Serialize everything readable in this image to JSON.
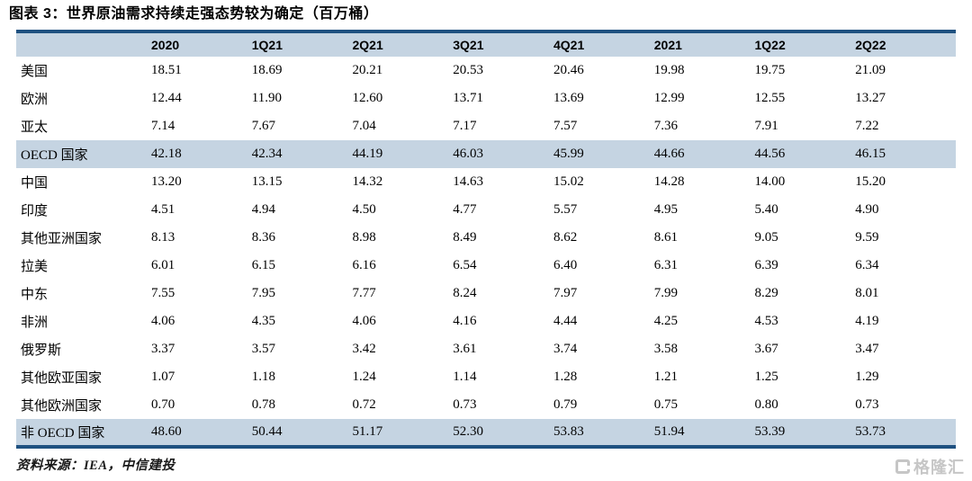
{
  "title": "图表 3：世界原油需求持续走强态势较为确定（百万桶）",
  "source_note": "资料来源：IEA，中信建投",
  "watermark": {
    "icon": "gelonghui-logo-icon",
    "label": "格隆汇"
  },
  "colors": {
    "accent_navy": "#1f5180",
    "band_blue": "#c5d4e2",
    "watermark_gray": "#c6c6c6"
  },
  "chart_data": {
    "type": "table",
    "title": "世界原油需求持续走强态势较为确定（百万桶）",
    "columns": [
      "",
      "2020",
      "1Q21",
      "2Q21",
      "3Q21",
      "4Q21",
      "2021",
      "1Q22",
      "2Q22"
    ],
    "rows": [
      {
        "label": "美国",
        "highlight": false,
        "values": [
          "18.51",
          "18.69",
          "20.21",
          "20.53",
          "20.46",
          "19.98",
          "19.75",
          "21.09"
        ]
      },
      {
        "label": "欧洲",
        "highlight": false,
        "values": [
          "12.44",
          "11.90",
          "12.60",
          "13.71",
          "13.69",
          "12.99",
          "12.55",
          "13.27"
        ]
      },
      {
        "label": "亚太",
        "highlight": false,
        "values": [
          "7.14",
          "7.67",
          "7.04",
          "7.17",
          "7.57",
          "7.36",
          "7.91",
          "7.22"
        ]
      },
      {
        "label": "OECD 国家",
        "highlight": true,
        "values": [
          "42.18",
          "42.34",
          "44.19",
          "46.03",
          "45.99",
          "44.66",
          "44.56",
          "46.15"
        ]
      },
      {
        "label": "中国",
        "highlight": false,
        "values": [
          "13.20",
          "13.15",
          "14.32",
          "14.63",
          "15.02",
          "14.28",
          "14.00",
          "15.20"
        ]
      },
      {
        "label": "印度",
        "highlight": false,
        "values": [
          "4.51",
          "4.94",
          "4.50",
          "4.77",
          "5.57",
          "4.95",
          "5.40",
          "4.90"
        ]
      },
      {
        "label": "其他亚洲国家",
        "highlight": false,
        "values": [
          "8.13",
          "8.36",
          "8.98",
          "8.49",
          "8.62",
          "8.61",
          "9.05",
          "9.59"
        ]
      },
      {
        "label": "拉美",
        "highlight": false,
        "values": [
          "6.01",
          "6.15",
          "6.16",
          "6.54",
          "6.40",
          "6.31",
          "6.39",
          "6.34"
        ]
      },
      {
        "label": "中东",
        "highlight": false,
        "values": [
          "7.55",
          "7.95",
          "7.77",
          "8.24",
          "7.97",
          "7.99",
          "8.29",
          "8.01"
        ]
      },
      {
        "label": "非洲",
        "highlight": false,
        "values": [
          "4.06",
          "4.35",
          "4.06",
          "4.16",
          "4.44",
          "4.25",
          "4.53",
          "4.19"
        ]
      },
      {
        "label": "俄罗斯",
        "highlight": false,
        "values": [
          "3.37",
          "3.57",
          "3.42",
          "3.61",
          "3.74",
          "3.58",
          "3.67",
          "3.47"
        ]
      },
      {
        "label": "其他欧亚国家",
        "highlight": false,
        "values": [
          "1.07",
          "1.18",
          "1.24",
          "1.14",
          "1.28",
          "1.21",
          "1.25",
          "1.29"
        ]
      },
      {
        "label": "其他欧洲国家",
        "highlight": false,
        "values": [
          "0.70",
          "0.78",
          "0.72",
          "0.73",
          "0.79",
          "0.75",
          "0.80",
          "0.73"
        ]
      },
      {
        "label": "非 OECD 国家",
        "highlight": true,
        "values": [
          "48.60",
          "50.44",
          "51.17",
          "52.30",
          "53.83",
          "51.94",
          "53.39",
          "53.73"
        ]
      }
    ]
  }
}
